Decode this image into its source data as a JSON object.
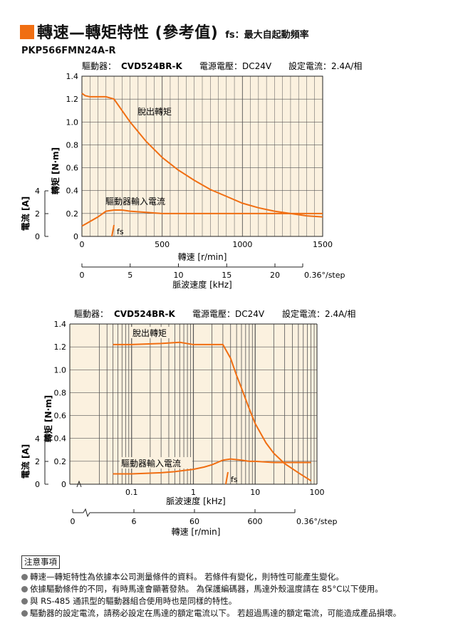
{
  "header": {
    "title": "轉速—轉矩特性 (參考值)",
    "subtitle": "fs：最大自起動頻率",
    "model": "PKP566FMN24A-R"
  },
  "colors": {
    "accent": "#f06e12",
    "plot_bg": "#fbf1df",
    "grid": "#555555"
  },
  "chart_data": [
    {
      "type": "line",
      "header_text": {
        "driver": "驅動器：",
        "driver_model": "CVD524BR-K",
        "voltage": "電源電壓：DC24V",
        "current": "設定電流：2.4A/相"
      },
      "x": {
        "label": "轉速 [r/min]",
        "range": [
          0,
          1500
        ],
        "ticks": [
          0,
          500,
          1000,
          1500
        ],
        "tick_labels": [
          "0",
          "500",
          "1000",
          "1500"
        ]
      },
      "x2": {
        "label": "脈波速度 [kHz]",
        "ticks": [
          0,
          5,
          10,
          15,
          20
        ],
        "tick_labels": [
          "0",
          "5",
          "10",
          "15",
          "20"
        ],
        "suffix": "0.36°/step"
      },
      "y": {
        "label": "轉矩 [N·m]",
        "range": [
          0,
          1.4
        ],
        "ticks": [
          0,
          0.2,
          0.4,
          0.6,
          0.8,
          1.0,
          1.2,
          1.4
        ],
        "tick_labels": [
          "0",
          "0.2",
          "0.4",
          "0.6",
          "0.8",
          "1.0",
          "1.2",
          "1.4"
        ]
      },
      "y2": {
        "label": "電流 [A]",
        "ticks": [
          0,
          2,
          4
        ],
        "tick_labels": [
          "0",
          "2",
          "4"
        ]
      },
      "series": [
        {
          "name": "脫出轉矩",
          "x": [
            0,
            20,
            50,
            100,
            150,
            200,
            300,
            400,
            500,
            600,
            700,
            800,
            900,
            1000,
            1100,
            1200,
            1300,
            1400,
            1500
          ],
          "y": [
            1.25,
            1.23,
            1.22,
            1.22,
            1.22,
            1.2,
            1.0,
            0.83,
            0.69,
            0.58,
            0.49,
            0.41,
            0.35,
            0.29,
            0.25,
            0.22,
            0.2,
            0.18,
            0.17
          ]
        },
        {
          "name": "驅動器輸入電流",
          "x": [
            0,
            50,
            100,
            150,
            200,
            250,
            300,
            400,
            500,
            700,
            900,
            1100,
            1300,
            1500
          ],
          "y": [
            0.09,
            0.13,
            0.17,
            0.22,
            0.23,
            0.23,
            0.22,
            0.21,
            0.2,
            0.2,
            0.2,
            0.2,
            0.2,
            0.2
          ]
        }
      ],
      "fs": {
        "label": "fs",
        "x": 200
      }
    },
    {
      "type": "line",
      "header_text": {
        "driver": "驅動器：",
        "driver_model": "CVD524BR-K",
        "voltage": "電源電壓：DC24V",
        "current": "設定電流：2.4A/相"
      },
      "x": {
        "label": "脈波速度 [kHz]",
        "scale": "log",
        "range": [
          0.01,
          100
        ],
        "ticks": [
          0.1,
          1,
          10,
          100
        ],
        "tick_labels": [
          "0.1",
          "1",
          "10",
          "100"
        ]
      },
      "x2": {
        "label": "轉速 [r/min]",
        "ticks": [
          0,
          6,
          60,
          600
        ],
        "tick_labels": [
          "0",
          "6",
          "60",
          "600"
        ],
        "suffix": "0.36°/step"
      },
      "y": {
        "label": "轉矩 [N·m]",
        "range": [
          0,
          1.4
        ],
        "ticks": [
          0,
          0.2,
          0.4,
          0.6,
          0.8,
          1.0,
          1.2,
          1.4
        ],
        "tick_labels": [
          "0",
          "0.2",
          "0.4",
          "0.6",
          "0.8",
          "1.0",
          "1.2",
          "1.4"
        ]
      },
      "y2": {
        "label": "電流 [A]",
        "ticks": [
          0,
          2,
          4
        ],
        "tick_labels": [
          "0",
          "2",
          "4"
        ]
      },
      "series": [
        {
          "name": "脫出轉矩",
          "x": [
            0.05,
            0.1,
            0.3,
            0.6,
            1,
            2,
            3,
            4,
            5,
            6,
            8,
            10,
            15,
            20,
            30,
            50,
            80
          ],
          "y": [
            1.22,
            1.22,
            1.23,
            1.24,
            1.22,
            1.22,
            1.22,
            1.1,
            0.95,
            0.84,
            0.66,
            0.53,
            0.36,
            0.27,
            0.18,
            0.1,
            0.03
          ]
        },
        {
          "name": "驅動器輸入電流",
          "x": [
            0.05,
            0.1,
            0.3,
            0.5,
            1,
            1.5,
            2,
            3,
            4,
            6,
            8,
            10,
            20,
            50,
            80
          ],
          "y": [
            0.09,
            0.09,
            0.1,
            0.11,
            0.13,
            0.15,
            0.17,
            0.21,
            0.22,
            0.21,
            0.2,
            0.2,
            0.19,
            0.19,
            0.19
          ]
        }
      ],
      "fs": {
        "label": "fs",
        "x": 3.3
      }
    }
  ],
  "notes": {
    "title": "注意事項",
    "items": [
      "轉速—轉矩特性為依據本公司測量條件的資料。 若條件有變化，則特性可能產生變化。",
      "依據驅動條件的不同，有時馬達會顯著發熱。 為保護編碼器，馬達外殼溫度請在 85°C以下使用。",
      "與 RS-485 通訊型的驅動器組合使用時也是同樣的特性。",
      "驅動器的設定電流，請務必設定在馬達的額定電流以下。 若超過馬達的額定電流，可能造成產品損壞。"
    ]
  }
}
